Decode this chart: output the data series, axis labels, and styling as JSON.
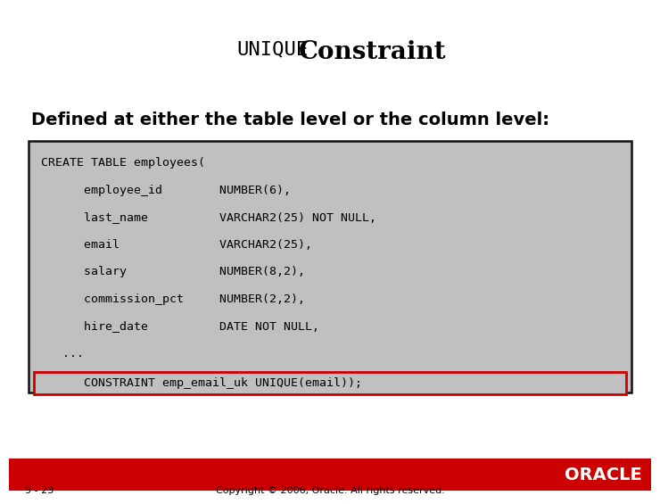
{
  "title_mono": "UNIQUE",
  "title_bold": "Constraint",
  "subtitle": "Defined at either the table level or the column level:",
  "code_lines": [
    "CREATE TABLE employees(",
    "      employee_id        NUMBER(6),",
    "      last_name          VARCHAR2(25) NOT NULL,",
    "      email              VARCHAR2(25),",
    "      salary             NUMBER(8,2),",
    "      commission_pct     NUMBER(2,2),",
    "      hire_date          DATE NOT NULL,",
    "   ...",
    "      CONSTRAINT emp_email_uk UNIQUE(email));"
  ],
  "highlighted_line_idx": 8,
  "bg_color": "#ffffff",
  "code_box_color": "#c0c0c0",
  "code_box_border": "#111111",
  "highlight_border": "#cc0000",
  "highlight_bg": "#c0c0c0",
  "footer_bar_color": "#cc0000",
  "footer_text": "Copyright © 2006, Oracle. All rights reserved.",
  "slide_number": "9 - 23",
  "oracle_text": "ORACLE",
  "oracle_text_color": "#ffffff",
  "code_font_size": 9.5,
  "title_mono_fontsize": 16,
  "title_bold_fontsize": 20,
  "subtitle_fontsize": 14,
  "footer_fontsize": 8,
  "oracle_fontsize": 14,
  "slide_num_fontsize": 8
}
